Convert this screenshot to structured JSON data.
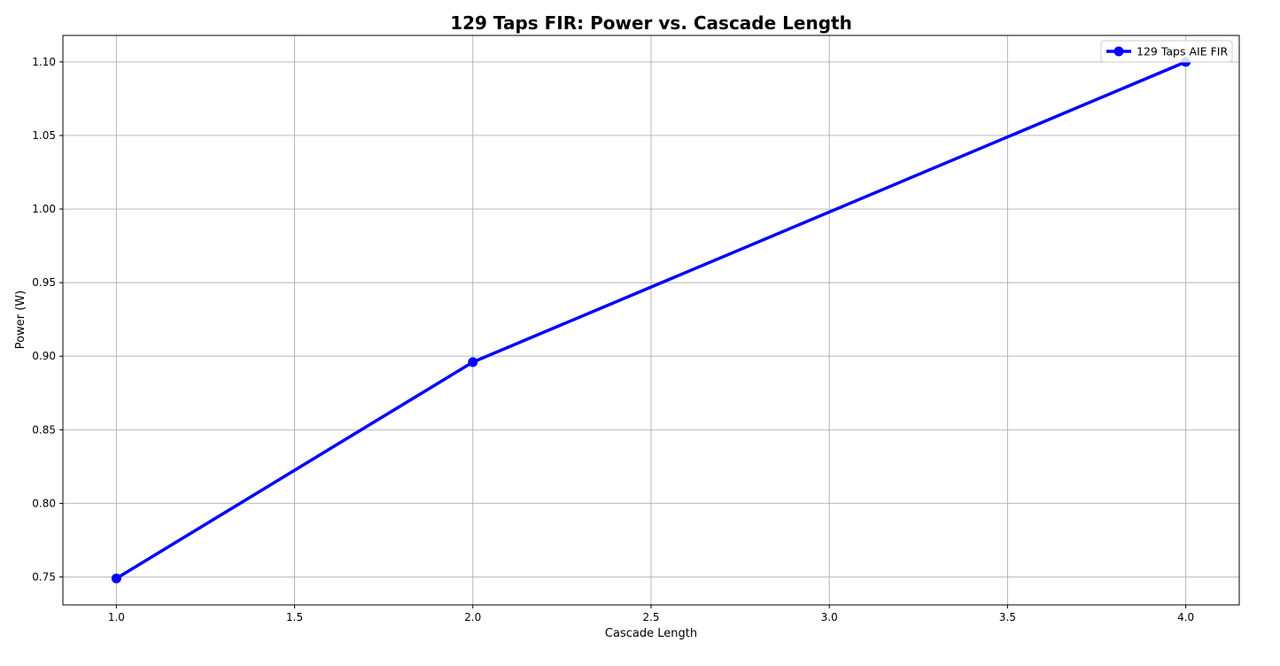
{
  "chart_data": {
    "type": "line",
    "title": "129 Taps FIR: Power vs. Cascade Length",
    "xlabel": "Cascade Length",
    "ylabel": "Power (W)",
    "xlim": [
      0.85,
      4.15
    ],
    "ylim": [
      0.731,
      1.118
    ],
    "xticks": [
      "1.0",
      "1.5",
      "2.0",
      "2.5",
      "3.0",
      "3.5",
      "4.0"
    ],
    "yticks": [
      "0.75",
      "0.80",
      "0.85",
      "0.90",
      "0.95",
      "1.00",
      "1.05",
      "1.10"
    ],
    "grid": true,
    "legend_position": "top-right",
    "series": [
      {
        "name": "129 Taps AIE FIR",
        "color": "#0000ff",
        "marker": "circle",
        "x": [
          1,
          2,
          4
        ],
        "y": [
          0.749,
          0.896,
          1.1
        ]
      }
    ]
  }
}
